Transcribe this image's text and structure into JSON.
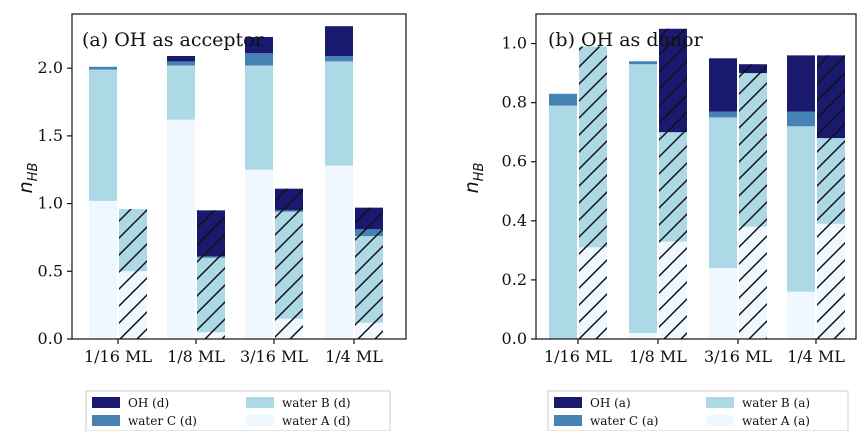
{
  "chart_data": [
    {
      "type": "bar",
      "stacked": true,
      "title": "(a) OH as acceptor",
      "ylabel": "n",
      "ylabel_sub": "HB",
      "ylim": [
        0,
        2.4
      ],
      "yticks": [
        "0.0",
        "0.5",
        "1.0",
        "1.5",
        "2.0"
      ],
      "ytick_values": [
        0,
        0.5,
        1.0,
        1.5,
        2.0
      ],
      "categories": [
        "1/16 ML",
        "1/8 ML",
        "3/16 ML",
        "1/4 ML"
      ],
      "bars_per_category": [
        "plain",
        "hatched"
      ],
      "series": [
        {
          "name": "water A (d)",
          "color": "#f0f8ff",
          "plain": [
            1.02,
            1.62,
            1.25,
            1.28
          ],
          "hatched": [
            0.5,
            0.05,
            0.15,
            0.12
          ]
        },
        {
          "name": "water B (d)",
          "color": "#add8e6",
          "plain": [
            0.97,
            0.4,
            0.77,
            0.77
          ],
          "hatched": [
            0.46,
            0.55,
            0.79,
            0.64
          ]
        },
        {
          "name": "water C (d)",
          "color": "#4682b4",
          "plain": [
            0.02,
            0.03,
            0.09,
            0.04
          ],
          "hatched": [
            0.0,
            0.01,
            0.01,
            0.05
          ]
        },
        {
          "name": "OH (d)",
          "color": "#191970",
          "plain": [
            0.0,
            0.04,
            0.12,
            0.22
          ],
          "hatched": [
            0.0,
            0.34,
            0.16,
            0.16
          ]
        }
      ],
      "legend": {
        "position": "below",
        "entries": [
          {
            "label": "OH (d)",
            "color": "#191970"
          },
          {
            "label": "water B (d)",
            "color": "#add8e6"
          },
          {
            "label": "water C (d)",
            "color": "#4682b4"
          },
          {
            "label": "water A (d)",
            "color": "#f0f8ff"
          }
        ]
      },
      "grid": false
    },
    {
      "type": "bar",
      "stacked": true,
      "title": "(b) OH as donor",
      "ylabel": "n",
      "ylabel_sub": "HB",
      "ylim": [
        0,
        1.1
      ],
      "yticks": [
        "0.0",
        "0.2",
        "0.4",
        "0.6",
        "0.8",
        "1.0"
      ],
      "ytick_values": [
        0,
        0.2,
        0.4,
        0.6,
        0.8,
        1.0
      ],
      "categories": [
        "1/16 ML",
        "1/8 ML",
        "3/16 ML",
        "1/4 ML"
      ],
      "bars_per_category": [
        "plain",
        "hatched"
      ],
      "series": [
        {
          "name": "water A (a)",
          "color": "#f0f8ff",
          "plain": [
            0.0,
            0.02,
            0.24,
            0.16
          ],
          "hatched": [
            0.31,
            0.33,
            0.38,
            0.39
          ]
        },
        {
          "name": "water B (a)",
          "color": "#add8e6",
          "plain": [
            0.79,
            0.91,
            0.51,
            0.56
          ],
          "hatched": [
            0.68,
            0.37,
            0.52,
            0.29
          ]
        },
        {
          "name": "water C (a)",
          "color": "#4682b4",
          "plain": [
            0.04,
            0.01,
            0.02,
            0.05
          ],
          "hatched": [
            0.0,
            0.0,
            0.0,
            0.0
          ]
        },
        {
          "name": "OH (a)",
          "color": "#191970",
          "plain": [
            0.0,
            0.0,
            0.18,
            0.19
          ],
          "hatched": [
            0.0,
            0.35,
            0.03,
            0.28
          ]
        }
      ],
      "legend": {
        "position": "below",
        "entries": [
          {
            "label": "OH (a)",
            "color": "#191970"
          },
          {
            "label": "water B (a)",
            "color": "#add8e6"
          },
          {
            "label": "water C (a)",
            "color": "#4682b4"
          },
          {
            "label": "water A (a)",
            "color": "#f0f8ff"
          }
        ]
      },
      "grid": false
    }
  ]
}
